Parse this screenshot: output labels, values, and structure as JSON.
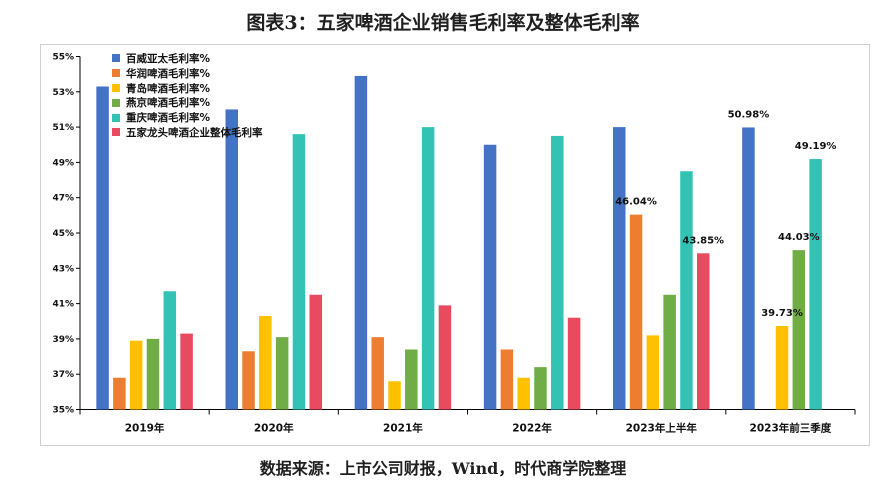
{
  "title": "图表3：五家啤酒企业销售毛利率及整体毛利率",
  "source": "数据来源：上市公司财报，Wind，时代商学院整理",
  "chart_data": {
    "type": "bar",
    "categories": [
      "2019年",
      "2020年",
      "2021年",
      "2022年",
      "2023年上半年",
      "2023年前三季度"
    ],
    "ylim": [
      35,
      55
    ],
    "yticks": [
      "35%",
      "37%",
      "39%",
      "41%",
      "43%",
      "45%",
      "47%",
      "49%",
      "51%",
      "53%",
      "55%"
    ],
    "ytick_values": [
      35,
      37,
      39,
      41,
      43,
      45,
      47,
      49,
      51,
      53,
      55
    ],
    "grid": false,
    "legend_position": "top-left",
    "series": [
      {
        "name": "百威亚太毛利率%",
        "color": "#4472C4",
        "values": [
          53.3,
          52.0,
          53.9,
          50.0,
          51.0,
          50.98
        ]
      },
      {
        "name": "华润啤酒毛利率%",
        "color": "#ED7D31",
        "values": [
          36.8,
          38.3,
          39.1,
          38.4,
          46.04,
          null
        ]
      },
      {
        "name": "青岛啤酒毛利率%",
        "color": "#FFC000",
        "values": [
          38.9,
          40.3,
          36.6,
          36.8,
          39.2,
          39.73
        ]
      },
      {
        "name": "燕京啤酒毛利率%",
        "color": "#70AD47",
        "values": [
          39.0,
          39.1,
          38.4,
          37.4,
          41.5,
          44.03
        ]
      },
      {
        "name": "重庆啤酒毛利率%",
        "color": "#33C3B5",
        "values": [
          41.7,
          50.6,
          51.0,
          50.5,
          48.5,
          49.19
        ]
      },
      {
        "name": "五家龙头啤酒企业整体毛利率",
        "color": "#E84A5F",
        "values": [
          39.3,
          41.5,
          40.9,
          40.2,
          43.85,
          null
        ]
      }
    ],
    "data_labels": [
      {
        "series": 1,
        "category": 4,
        "text": "46.04%"
      },
      {
        "series": 5,
        "category": 4,
        "text": "43.85%"
      },
      {
        "series": 0,
        "category": 5,
        "text": "50.98%"
      },
      {
        "series": 2,
        "category": 5,
        "text": "39.73%"
      },
      {
        "series": 3,
        "category": 5,
        "text": "44.03%"
      },
      {
        "series": 4,
        "category": 5,
        "text": "49.19%"
      }
    ]
  }
}
